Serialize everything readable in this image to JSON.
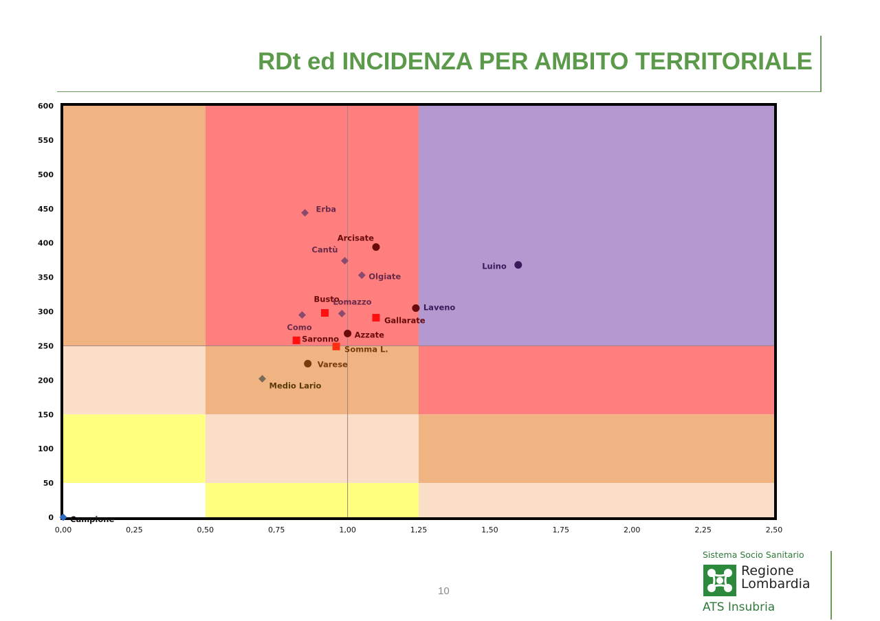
{
  "slide": {
    "title": "RDt ed INCIDENZA PER AMBITO TERRITORIALE",
    "page_number": "10"
  },
  "logo": {
    "top_line": "Sistema Socio Sanitario",
    "name_line1": "Regione",
    "name_line2": "Lombardia",
    "bottom_line": "ATS Insubria",
    "mark_icon": "regione-lombardia-rosa-camuna-icon",
    "mark_color": "#2d8a3c"
  },
  "chart_data": {
    "type": "scatter",
    "xlim": [
      0,
      2.5
    ],
    "ylim": [
      0,
      600
    ],
    "x_ticks": [
      0,
      0.25,
      0.5,
      0.75,
      1,
      1.25,
      1.5,
      1.75,
      2,
      2.25,
      2.5
    ],
    "x_tick_labels": [
      "0,00",
      "0,25",
      "0,50",
      "0,75",
      "1,00",
      "1,25",
      "1,50",
      "1,75",
      "2,00",
      "2,25",
      "2,50"
    ],
    "y_ticks": [
      0,
      50,
      100,
      150,
      200,
      250,
      300,
      350,
      400,
      450,
      500,
      550,
      600
    ],
    "y_tick_labels": [
      "0",
      "50",
      "100",
      "150",
      "200",
      "250",
      "300",
      "350",
      "400",
      "450",
      "500",
      "550",
      "600"
    ],
    "grid": false,
    "reference_lines": {
      "x": 1.0,
      "y": 250
    },
    "zones": [
      {
        "x": [
          0,
          0.5
        ],
        "y": [
          250,
          600
        ],
        "color": "#f0b482"
      },
      {
        "x": [
          0.5,
          1.25
        ],
        "y": [
          250,
          600
        ],
        "color": "#ff7f7f"
      },
      {
        "x": [
          1.25,
          2.5
        ],
        "y": [
          250,
          600
        ],
        "color": "#b498d0"
      },
      {
        "x": [
          0,
          0.5
        ],
        "y": [
          150,
          250
        ],
        "color": "#fadec8"
      },
      {
        "x": [
          0.5,
          1.25
        ],
        "y": [
          150,
          250
        ],
        "color": "#f0b482"
      },
      {
        "x": [
          1.25,
          2.5
        ],
        "y": [
          150,
          250
        ],
        "color": "#ff7f7f"
      },
      {
        "x": [
          0,
          0.5
        ],
        "y": [
          50,
          150
        ],
        "color": "#ffff80"
      },
      {
        "x": [
          0.5,
          1.25
        ],
        "y": [
          50,
          150
        ],
        "color": "#fadec8"
      },
      {
        "x": [
          1.25,
          2.5
        ],
        "y": [
          50,
          150
        ],
        "color": "#f0b482"
      },
      {
        "x": [
          0,
          0.5
        ],
        "y": [
          0,
          50
        ],
        "color": "#ffffff"
      },
      {
        "x": [
          0.5,
          1.25
        ],
        "y": [
          0,
          50
        ],
        "color": "#ffff80"
      },
      {
        "x": [
          1.25,
          2.5
        ],
        "y": [
          0,
          50
        ],
        "color": "#fadec8"
      }
    ],
    "points": [
      {
        "label": "Erba",
        "x": 0.85,
        "y": 444,
        "marker": "diamond",
        "color": "#8a4a6e",
        "text_color": "#6a2a4a"
      },
      {
        "label": "Arcisate",
        "x": 1.1,
        "y": 394,
        "marker": "circle",
        "color": "#6a0a0a",
        "text_color": "#6a0a0a"
      },
      {
        "label": "Cantù",
        "x": 0.99,
        "y": 374,
        "marker": "diamond",
        "color": "#8a4a6e",
        "text_color": "#6a2a4a"
      },
      {
        "label": "Luino",
        "x": 1.6,
        "y": 368,
        "marker": "circle",
        "color": "#3a1a5a",
        "text_color": "#3a1a5a"
      },
      {
        "label": "Olgiate",
        "x": 1.05,
        "y": 353,
        "marker": "diamond",
        "color": "#8a4a6e",
        "text_color": "#6a2a4a"
      },
      {
        "label": "Laveno",
        "x": 1.24,
        "y": 305,
        "marker": "circle",
        "color": "#6a0a0a",
        "text_color": "#3a1a5a"
      },
      {
        "label": "Busto",
        "x": 0.92,
        "y": 298,
        "marker": "square",
        "color": "#ff1010",
        "text_color": "#6a0a0a"
      },
      {
        "label": "Lomazzo",
        "x": 0.98,
        "y": 297,
        "marker": "diamond",
        "color": "#8a4a6e",
        "text_color": "#6a2a4a"
      },
      {
        "label": "Como",
        "x": 0.84,
        "y": 295,
        "marker": "diamond",
        "color": "#8a4a6e",
        "text_color": "#6a2a4a"
      },
      {
        "label": "Gallarate",
        "x": 1.1,
        "y": 291,
        "marker": "square",
        "color": "#ff1010",
        "text_color": "#6a0a0a"
      },
      {
        "label": "Azzate",
        "x": 1.0,
        "y": 268,
        "marker": "circle",
        "color": "#6a0a0a",
        "text_color": "#6a0a0a"
      },
      {
        "label": "Saronno",
        "x": 0.82,
        "y": 258,
        "marker": "square",
        "color": "#ff1010",
        "text_color": "#6a0a0a"
      },
      {
        "label": "Somma L.",
        "x": 0.96,
        "y": 249,
        "marker": "square",
        "color": "#ff3010",
        "text_color": "#7a3a0a"
      },
      {
        "label": "Varese",
        "x": 0.86,
        "y": 224,
        "marker": "circle",
        "color": "#7a3a0a",
        "text_color": "#7a3a0a"
      },
      {
        "label": "Medio Lario",
        "x": 0.7,
        "y": 202,
        "marker": "diamond",
        "color": "#7a6a5a",
        "text_color": "#5a3a0a"
      },
      {
        "label": "Campione",
        "x": 0.0,
        "y": 0,
        "marker": "diamond",
        "color": "#2a6ac0",
        "text_color": "#111111"
      }
    ]
  }
}
